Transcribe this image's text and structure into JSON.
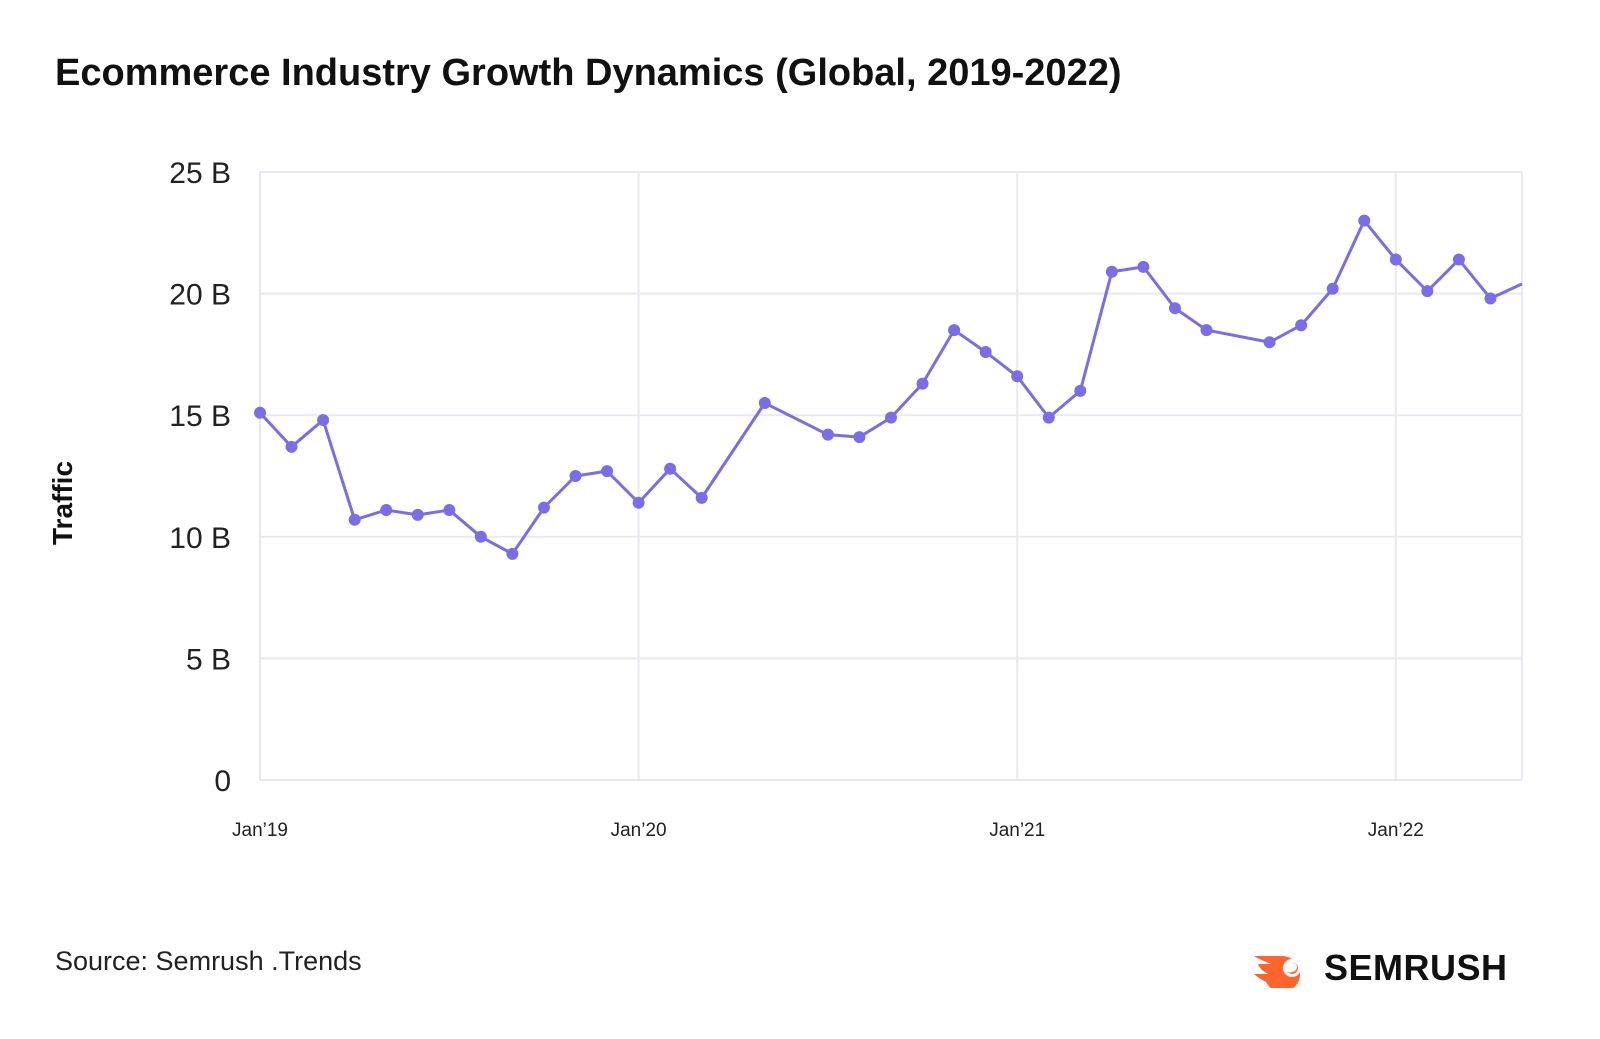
{
  "title": "Ecommerce Industry Growth Dynamics (Global, 2019-2022)",
  "source": "Source: Semrush .Trends",
  "brand": {
    "name": "SEMRUSH",
    "icon": "semrush-flame-icon",
    "color": "#ff642d"
  },
  "colors": {
    "line": "#7b6ce8",
    "grid": "#e9e9ef",
    "axis": "#e6e6ee"
  },
  "chart_data": {
    "type": "line",
    "title": "Ecommerce Industry Growth Dynamics (Global, 2019-2022)",
    "xlabel": "",
    "ylabel": "Traffic",
    "ylim": [
      0,
      25
    ],
    "y_unit": "B",
    "y_ticks": [
      0,
      5,
      10,
      15,
      20,
      25
    ],
    "y_tick_labels": [
      "0",
      "5 B",
      "10 B",
      "15 B",
      "20 B",
      "25 B"
    ],
    "x_ticks": [
      "2019-01",
      "2020-01",
      "2021-01",
      "2022-01"
    ],
    "x_tick_labels": [
      "Jan’19",
      "Jan’20",
      "Jan’21",
      "Jan’22"
    ],
    "xlim": [
      "2019-01",
      "2022-05"
    ],
    "grid": true,
    "series": [
      {
        "points": [
          {
            "x": "2019-01",
            "y": 15.1
          },
          {
            "x": "2019-02",
            "y": 13.7
          },
          {
            "x": "2019-03",
            "y": 14.8
          },
          {
            "x": "2019-04",
            "y": 10.7
          },
          {
            "x": "2019-05",
            "y": 11.1
          },
          {
            "x": "2019-06",
            "y": 10.9
          },
          {
            "x": "2019-07",
            "y": 11.1
          },
          {
            "x": "2019-08",
            "y": 10.0
          },
          {
            "x": "2019-09",
            "y": 9.3
          },
          {
            "x": "2019-10",
            "y": 11.2
          },
          {
            "x": "2019-11",
            "y": 12.5
          },
          {
            "x": "2019-12",
            "y": 12.7
          },
          {
            "x": "2020-01",
            "y": 11.4
          },
          {
            "x": "2020-02",
            "y": 12.8
          },
          {
            "x": "2020-03",
            "y": 11.6
          },
          {
            "x": "2020-05",
            "y": 15.5
          },
          {
            "x": "2020-07",
            "y": 14.2
          },
          {
            "x": "2020-08",
            "y": 14.1
          },
          {
            "x": "2020-09",
            "y": 14.9
          },
          {
            "x": "2020-10",
            "y": 16.3
          },
          {
            "x": "2020-11",
            "y": 18.5
          },
          {
            "x": "2020-12",
            "y": 17.6
          },
          {
            "x": "2021-01",
            "y": 16.6
          },
          {
            "x": "2021-02",
            "y": 14.9
          },
          {
            "x": "2021-03",
            "y": 16.0
          },
          {
            "x": "2021-04",
            "y": 20.9
          },
          {
            "x": "2021-05",
            "y": 21.1
          },
          {
            "x": "2021-06",
            "y": 19.4
          },
          {
            "x": "2021-07",
            "y": 18.5
          },
          {
            "x": "2021-09",
            "y": 18.0
          },
          {
            "x": "2021-10",
            "y": 18.7
          },
          {
            "x": "2021-11",
            "y": 20.2
          },
          {
            "x": "2021-12",
            "y": 23.0
          },
          {
            "x": "2022-01",
            "y": 21.4
          },
          {
            "x": "2022-02",
            "y": 20.1
          },
          {
            "x": "2022-03",
            "y": 21.4
          },
          {
            "x": "2022-04",
            "y": 19.8
          }
        ],
        "end": {
          "x": "2022-05",
          "y": 20.4
        }
      }
    ]
  }
}
